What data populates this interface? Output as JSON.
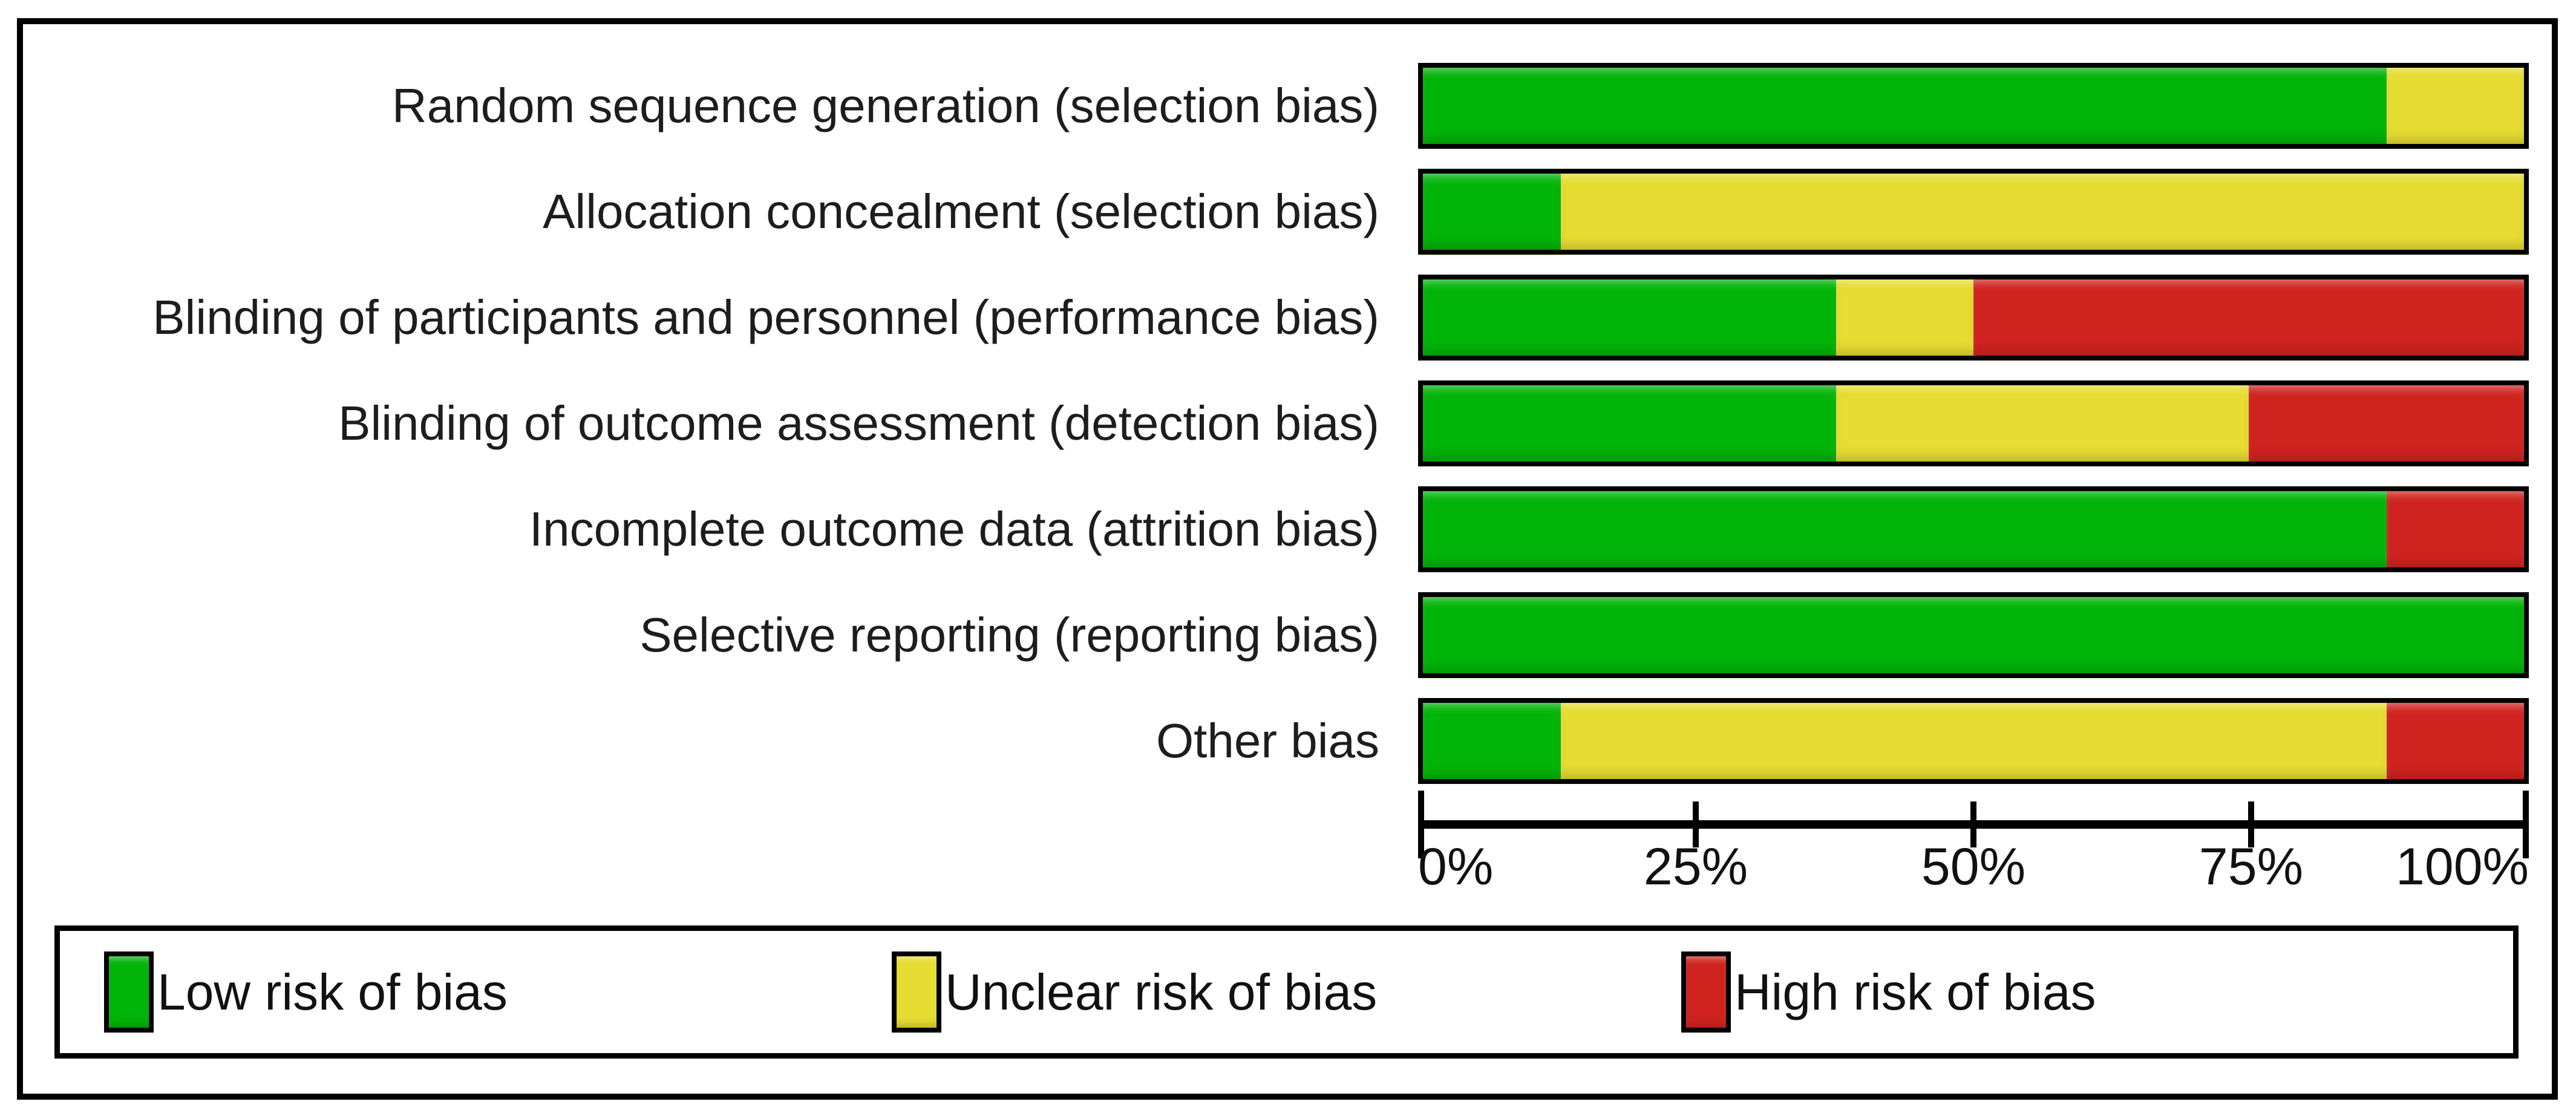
{
  "chart_data": {
    "type": "bar",
    "stacked": true,
    "orientation": "horizontal",
    "value_unit": "percent of studies",
    "categories": [
      "Random sequence generation (selection bias)",
      "Allocation concealment (selection bias)",
      "Blinding of participants and personnel (performance bias)",
      "Blinding of outcome assessment (detection bias)",
      "Incomplete outcome data (attrition bias)",
      "Selective reporting (reporting bias)",
      "Other bias"
    ],
    "series": [
      {
        "name": "Low risk of bias",
        "color": "#01b408",
        "values": [
          87.5,
          12.5,
          37.5,
          37.5,
          87.5,
          100,
          12.5
        ]
      },
      {
        "name": "Unclear risk of bias",
        "color": "#e6dc32",
        "values": [
          12.5,
          87.5,
          12.5,
          37.5,
          0,
          0,
          75
        ]
      },
      {
        "name": "High risk of bias",
        "color": "#d0231f",
        "values": [
          0,
          0,
          50,
          25,
          12.5,
          0,
          12.5
        ]
      }
    ],
    "xlim": [
      0,
      100
    ],
    "x_ticks": [
      {
        "label": "0%",
        "value": 0
      },
      {
        "label": "25%",
        "value": 25
      },
      {
        "label": "50%",
        "value": 50
      },
      {
        "label": "75%",
        "value": 75
      },
      {
        "label": "100%",
        "value": 100
      }
    ],
    "grid": false,
    "legend": {
      "position": "bottom-box",
      "items": [
        {
          "label": "Low risk of bias",
          "color": "#01b408"
        },
        {
          "label": "Unclear risk of bias",
          "color": "#e6dc32"
        },
        {
          "label": "High risk of bias",
          "color": "#d0231f"
        }
      ]
    }
  },
  "colors": {
    "frame_border": "#000000",
    "bar_border": "#000000",
    "axis": "#000000",
    "text": "#1d1d1d",
    "background": "#ffffff"
  }
}
